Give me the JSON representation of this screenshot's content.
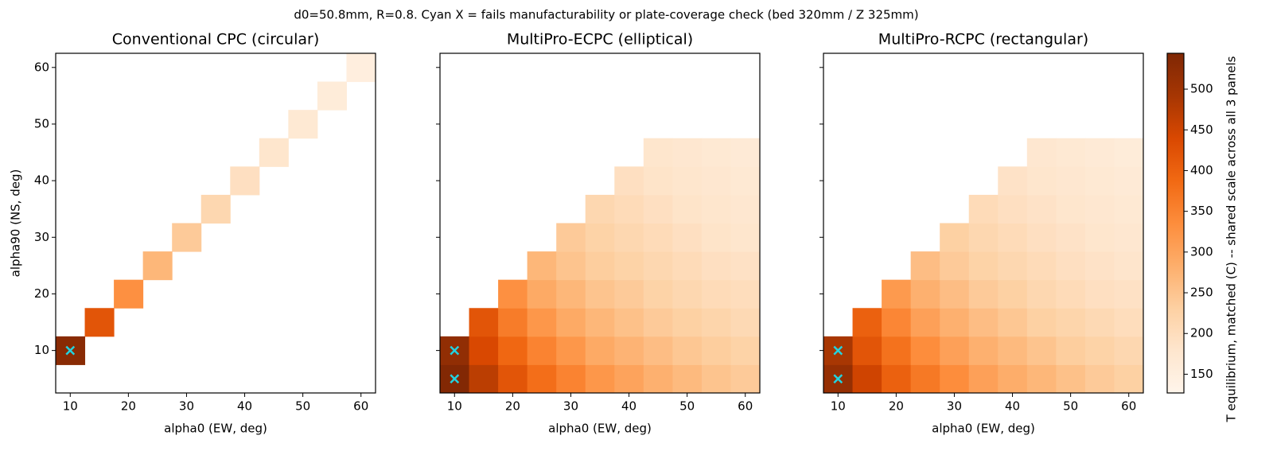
{
  "title": "d0=50.8mm, R=0.8. Cyan X = fails manufacturability or plate-coverage check (bed 320mm / Z 325mm)",
  "chart_data": [
    {
      "type": "heatmap",
      "title": "Conventional CPC (circular)",
      "x_label": "alpha0 (EW, deg)",
      "y_label": "alpha90 (NS, deg)",
      "x": [
        10,
        15,
        20,
        25,
        30,
        35,
        40,
        45,
        50,
        55,
        60
      ],
      "y": [
        5,
        10,
        15,
        20,
        25,
        30,
        35,
        40,
        45,
        50,
        55,
        60
      ],
      "z": [
        [
          null,
          null,
          null,
          null,
          null,
          null,
          null,
          null,
          null,
          null,
          null
        ],
        [
          530,
          null,
          null,
          null,
          null,
          null,
          null,
          null,
          null,
          null,
          null
        ],
        [
          null,
          420,
          null,
          null,
          null,
          null,
          null,
          null,
          null,
          null,
          null
        ],
        [
          null,
          null,
          330,
          null,
          null,
          null,
          null,
          null,
          null,
          null,
          null
        ],
        [
          null,
          null,
          null,
          270,
          null,
          null,
          null,
          null,
          null,
          null,
          null
        ],
        [
          null,
          null,
          null,
          null,
          240,
          null,
          null,
          null,
          null,
          null,
          null
        ],
        [
          null,
          null,
          null,
          null,
          null,
          215,
          null,
          null,
          null,
          null,
          null
        ],
        [
          null,
          null,
          null,
          null,
          null,
          null,
          195,
          null,
          null,
          null,
          null
        ],
        [
          null,
          null,
          null,
          null,
          null,
          null,
          null,
          180,
          null,
          null,
          null
        ],
        [
          null,
          null,
          null,
          null,
          null,
          null,
          null,
          null,
          170,
          null,
          null
        ],
        [
          null,
          null,
          null,
          null,
          null,
          null,
          null,
          null,
          null,
          160,
          null
        ],
        [
          null,
          null,
          null,
          null,
          null,
          null,
          null,
          null,
          null,
          null,
          150
        ]
      ],
      "xlim": [
        7.5,
        62.5
      ],
      "ylim": [
        2.5,
        62.5
      ],
      "xticks": [
        10,
        20,
        30,
        40,
        50,
        60
      ],
      "yticks": [
        10,
        20,
        30,
        40,
        50,
        60
      ],
      "show_ytick_labels": true,
      "markers": {
        "color": "#22d3e0",
        "x": [
          10
        ],
        "y": [
          10
        ]
      }
    },
    {
      "type": "heatmap",
      "title": "MultiPro-ECPC (elliptical)",
      "x_label": "alpha0 (EW, deg)",
      "x": [
        10,
        15,
        20,
        25,
        30,
        35,
        40,
        45,
        50,
        55,
        60
      ],
      "y": [
        5,
        10,
        15,
        20,
        25,
        30,
        35,
        40,
        45,
        50,
        55,
        60
      ],
      "z": [
        [
          540,
          470,
          420,
          380,
          350,
          320,
          300,
          280,
          265,
          250,
          240
        ],
        [
          520,
          440,
          390,
          350,
          320,
          290,
          275,
          260,
          245,
          235,
          225
        ],
        [
          null,
          420,
          360,
          320,
          290,
          270,
          255,
          240,
          230,
          220,
          210
        ],
        [
          null,
          null,
          330,
          290,
          270,
          250,
          240,
          225,
          215,
          205,
          200
        ],
        [
          null,
          null,
          null,
          270,
          250,
          235,
          225,
          215,
          205,
          195,
          190
        ],
        [
          null,
          null,
          null,
          null,
          240,
          225,
          215,
          205,
          195,
          185,
          180
        ],
        [
          null,
          null,
          null,
          null,
          null,
          215,
          205,
          195,
          185,
          180,
          175
        ],
        [
          null,
          null,
          null,
          null,
          null,
          null,
          195,
          185,
          180,
          175,
          170
        ],
        [
          null,
          null,
          null,
          null,
          null,
          null,
          null,
          180,
          175,
          170,
          165
        ],
        [
          null,
          null,
          null,
          null,
          null,
          null,
          null,
          null,
          null,
          null,
          null
        ],
        [
          null,
          null,
          null,
          null,
          null,
          null,
          null,
          null,
          null,
          null,
          null
        ],
        [
          null,
          null,
          null,
          null,
          null,
          null,
          null,
          null,
          null,
          null,
          null
        ]
      ],
      "xlim": [
        7.5,
        62.5
      ],
      "ylim": [
        2.5,
        62.5
      ],
      "xticks": [
        10,
        20,
        30,
        40,
        50,
        60
      ],
      "yticks": [
        10,
        20,
        30,
        40,
        50,
        60
      ],
      "show_ytick_labels": false,
      "markers": {
        "color": "#22d3e0",
        "x": [
          10,
          10
        ],
        "y": [
          10,
          5
        ]
      }
    },
    {
      "type": "heatmap",
      "title": "MultiPro-RCPC (rectangular)",
      "x_label": "alpha0 (EW, deg)",
      "x": [
        10,
        15,
        20,
        25,
        30,
        35,
        40,
        45,
        50,
        55,
        60
      ],
      "y": [
        5,
        10,
        15,
        20,
        25,
        30,
        35,
        40,
        45,
        50,
        55,
        60
      ],
      "z": [
        [
          515,
          450,
          400,
          365,
          335,
          305,
          285,
          270,
          255,
          240,
          230
        ],
        [
          490,
          420,
          375,
          335,
          305,
          280,
          265,
          250,
          235,
          225,
          215
        ],
        [
          null,
          400,
          345,
          305,
          280,
          260,
          245,
          230,
          220,
          210,
          200
        ],
        [
          null,
          null,
          315,
          280,
          260,
          240,
          230,
          215,
          205,
          195,
          190
        ],
        [
          null,
          null,
          null,
          260,
          240,
          225,
          215,
          205,
          195,
          188,
          182
        ],
        [
          null,
          null,
          null,
          null,
          230,
          215,
          205,
          195,
          188,
          180,
          175
        ],
        [
          null,
          null,
          null,
          null,
          null,
          205,
          195,
          188,
          180,
          175,
          170
        ],
        [
          null,
          null,
          null,
          null,
          null,
          null,
          188,
          180,
          175,
          170,
          165
        ],
        [
          null,
          null,
          null,
          null,
          null,
          null,
          null,
          175,
          170,
          165,
          160
        ],
        [
          null,
          null,
          null,
          null,
          null,
          null,
          null,
          null,
          null,
          null,
          null
        ],
        [
          null,
          null,
          null,
          null,
          null,
          null,
          null,
          null,
          null,
          null,
          null
        ],
        [
          null,
          null,
          null,
          null,
          null,
          null,
          null,
          null,
          null,
          null,
          null
        ]
      ],
      "xlim": [
        7.5,
        62.5
      ],
      "ylim": [
        2.5,
        62.5
      ],
      "xticks": [
        10,
        20,
        30,
        40,
        50,
        60
      ],
      "yticks": [
        10,
        20,
        30,
        40,
        50,
        60
      ],
      "show_ytick_labels": false,
      "markers": {
        "color": "#22d3e0",
        "x": [
          10,
          10
        ],
        "y": [
          10,
          5
        ]
      }
    }
  ],
  "colorbar": {
    "label": "T equilibrium, matched (C) -- shared scale across all 3 panels",
    "lim": [
      127,
      544
    ],
    "ticks": [
      150,
      200,
      250,
      300,
      350,
      400,
      450,
      500
    ],
    "colors": [
      "#fff5eb",
      "#fee6ce",
      "#fdd0a2",
      "#fdae6b",
      "#fd8d3c",
      "#f16913",
      "#d94801",
      "#a63603",
      "#7f2704"
    ]
  }
}
